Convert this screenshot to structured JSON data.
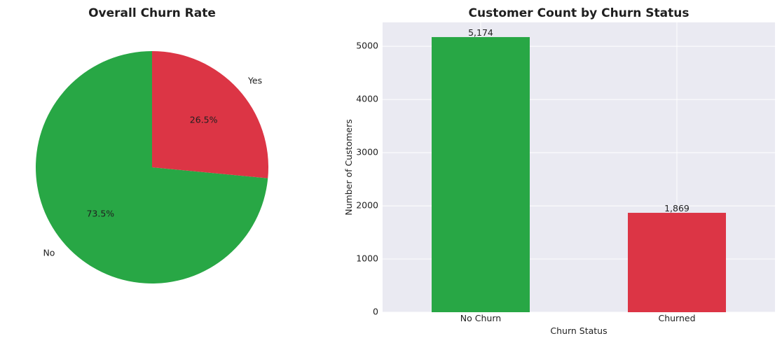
{
  "chart_data": [
    {
      "type": "pie",
      "title": "Overall Churn Rate",
      "categories": [
        "No",
        "Yes"
      ],
      "values": [
        73.5,
        26.5
      ],
      "pct_labels": [
        "73.5%",
        "26.5%"
      ],
      "colors": [
        "#28a745",
        "#dc3545"
      ]
    },
    {
      "type": "bar",
      "title": "Customer Count by Churn Status",
      "categories": [
        "No Churn",
        "Churned"
      ],
      "values": [
        5174,
        1869
      ],
      "value_labels": [
        "5,174",
        "1,869"
      ],
      "colors": [
        "#28a745",
        "#dc3545"
      ],
      "xlabel": "Churn Status",
      "ylabel": "Number of Customers",
      "yticks": [
        0,
        1000,
        2000,
        3000,
        4000,
        5000
      ],
      "ylim": [
        0,
        5450
      ],
      "grid": true,
      "background": "#eaeaf2"
    }
  ]
}
